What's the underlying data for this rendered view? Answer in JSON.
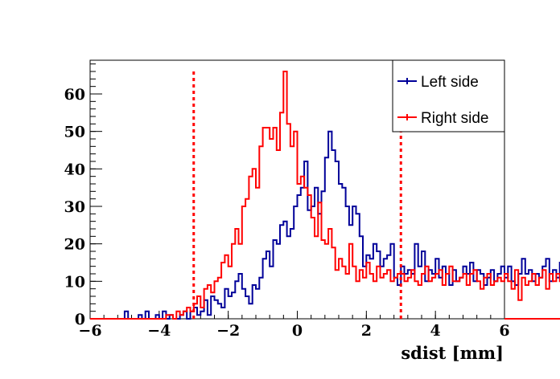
{
  "chart_data": {
    "type": "line",
    "xlabel": "sdist [mm]",
    "ylabel": "",
    "xlim": [
      -6,
      6
    ],
    "ylim": [
      0,
      69
    ],
    "x_ticks": [
      "−6",
      "−4",
      "−2",
      "0",
      "2",
      "4",
      "6"
    ],
    "y_ticks": [
      "0",
      "10",
      "20",
      "30",
      "40",
      "50",
      "60"
    ],
    "legend_position": "top-right",
    "bin_width": 0.1,
    "x_start": -5.0,
    "series": [
      {
        "name": "Left side",
        "color": "#000099",
        "values": [
          2,
          0,
          0,
          0,
          1,
          0,
          2,
          0,
          0,
          1,
          0,
          2,
          0,
          1,
          0,
          0,
          1,
          2,
          0,
          2,
          3,
          1,
          2,
          5,
          1,
          6,
          5,
          4,
          3,
          8,
          6,
          7,
          10,
          12,
          8,
          6,
          4,
          9,
          8,
          11,
          16,
          18,
          14,
          21,
          20,
          25,
          26,
          22,
          24,
          30,
          33,
          35,
          42,
          29,
          30,
          35,
          28,
          34,
          43,
          50,
          45,
          42,
          36,
          35,
          30,
          25,
          30,
          28,
          22,
          14,
          17,
          16,
          20,
          18,
          14,
          16,
          17,
          20,
          11,
          9,
          14,
          12,
          13,
          12,
          20,
          14,
          18,
          10,
          13,
          12,
          16,
          11,
          14,
          12,
          9,
          13,
          10,
          11,
          14,
          12,
          15,
          10,
          13,
          12,
          9,
          11,
          13,
          10,
          12,
          14,
          11,
          14,
          10,
          9,
          12,
          16,
          12,
          13,
          10,
          12,
          11,
          14,
          16,
          10,
          13,
          11,
          15,
          12,
          9,
          14,
          18,
          11,
          12,
          13,
          14,
          10,
          15,
          12,
          13,
          11,
          0
        ]
      },
      {
        "name": "Right side",
        "color": "#ff0000",
        "values": [
          0,
          0,
          0,
          0,
          0,
          0,
          0,
          0,
          0,
          0,
          0,
          0,
          1,
          1,
          0,
          2,
          1,
          2,
          3,
          2,
          4,
          6,
          3,
          8,
          9,
          7,
          10,
          11,
          15,
          17,
          14,
          20,
          24,
          20,
          30,
          32,
          38,
          40,
          35,
          46,
          51,
          51,
          48,
          51,
          45,
          55,
          66,
          52,
          46,
          50,
          36,
          38,
          35,
          33,
          27,
          22,
          31,
          21,
          20,
          24,
          19,
          13,
          16,
          14,
          12,
          20,
          14,
          10,
          13,
          11,
          15,
          12,
          10,
          14,
          11,
          12,
          13,
          10,
          11,
          12,
          12,
          10,
          11,
          13,
          10,
          9,
          12,
          14,
          10,
          11,
          12,
          13,
          9,
          12,
          14,
          10,
          10,
          11,
          12,
          9,
          12,
          13,
          10,
          8,
          11,
          12,
          9,
          10,
          11,
          10,
          12,
          10,
          8,
          13,
          5,
          11,
          9,
          10,
          12,
          9,
          11,
          13,
          8,
          12,
          10,
          12,
          10,
          6,
          11,
          13,
          3,
          0,
          0,
          0
        ]
      }
    ],
    "vertical_lines": [
      {
        "x": -3,
        "color": "#ff0000",
        "style": "dotted"
      },
      {
        "x": 3,
        "color": "#ff0000",
        "style": "dotted"
      }
    ]
  }
}
